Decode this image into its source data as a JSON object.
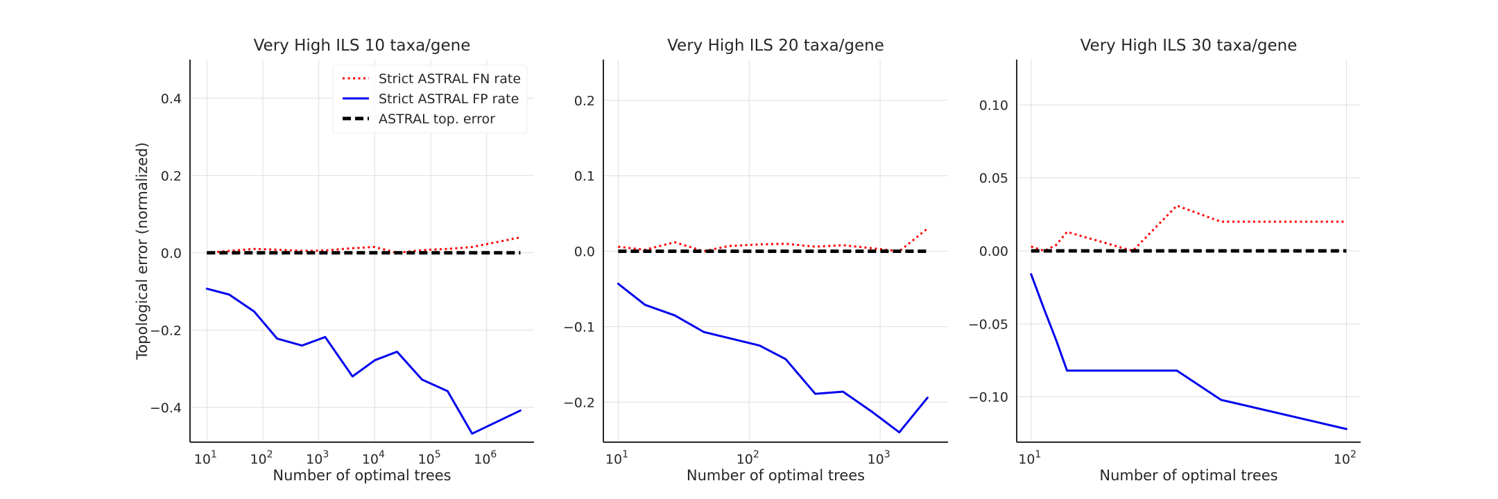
{
  "chart_data": [
    {
      "type": "line",
      "title": "Very High ILS 10 taxa/gene",
      "xlabel": "Number of optimal trees",
      "ylabel": "Topological error (normalized)",
      "xscale": "log",
      "xlim": [
        5,
        7000000
      ],
      "ylim": [
        -0.49,
        0.5
      ],
      "xticks": [
        {
          "base": "10",
          "exp": "1"
        },
        {
          "base": "10",
          "exp": "2"
        },
        {
          "base": "10",
          "exp": "3"
        },
        {
          "base": "10",
          "exp": "4"
        },
        {
          "base": "10",
          "exp": "5"
        },
        {
          "base": "10",
          "exp": "6"
        }
      ],
      "yticks": [
        "−0.4",
        "−0.2",
        "0.0",
        "0.2",
        "0.4"
      ],
      "ytick_values": [
        -0.4,
        -0.2,
        0.0,
        0.2,
        0.4
      ],
      "grid": true,
      "legend": {
        "position": "top-right",
        "entries": [
          "Strict ASTRAL FN rate",
          "Strict ASTRAL FP rate",
          "ASTRAL top. error"
        ]
      },
      "series": [
        {
          "name": "Strict ASTRAL FN rate",
          "color": "#ff0000",
          "style": "dotted",
          "x": [
            10,
            25,
            70,
            180,
            500,
            1300,
            4000,
            10000,
            25000,
            70000,
            200000,
            550000,
            4000000
          ],
          "y": [
            0.0,
            0.005,
            0.01,
            0.008,
            0.005,
            0.006,
            0.012,
            0.015,
            0.0,
            0.007,
            0.01,
            0.015,
            0.04
          ]
        },
        {
          "name": "Strict ASTRAL FP rate",
          "color": "#0000ee",
          "style": "solid",
          "x": [
            10,
            25,
            70,
            180,
            500,
            1300,
            4000,
            10000,
            25000,
            70000,
            200000,
            550000,
            4000000
          ],
          "y": [
            -0.093,
            -0.108,
            -0.152,
            -0.222,
            -0.24,
            -0.218,
            -0.32,
            -0.278,
            -0.256,
            -0.328,
            -0.358,
            -0.468,
            -0.408
          ]
        },
        {
          "name": "ASTRAL top. error",
          "color": "#000000",
          "style": "dashed",
          "x": [
            10,
            4000000
          ],
          "y": [
            0.0,
            0.0
          ]
        }
      ]
    },
    {
      "type": "line",
      "title": "Very High ILS 20 taxa/gene",
      "xlabel": "Number of optimal trees",
      "ylabel": "",
      "xscale": "log",
      "xlim": [
        7.7,
        3300
      ],
      "ylim": [
        -0.253,
        0.254
      ],
      "xticks": [
        {
          "base": "10",
          "exp": "1"
        },
        {
          "base": "10",
          "exp": "2"
        },
        {
          "base": "10",
          "exp": "3"
        }
      ],
      "yticks": [
        "−0.2",
        "−0.1",
        "0.0",
        "0.1",
        "0.2"
      ],
      "ytick_values": [
        -0.2,
        -0.1,
        0.0,
        0.1,
        0.2
      ],
      "grid": true,
      "series": [
        {
          "name": "Strict ASTRAL FN rate",
          "color": "#ff0000",
          "style": "dotted",
          "x": [
            10,
            16,
            27,
            45,
            70,
            120,
            190,
            320,
            520,
            870,
            1400,
            2300
          ],
          "y": [
            0.006,
            0.002,
            0.012,
            0.0,
            0.007,
            0.009,
            0.01,
            0.006,
            0.008,
            0.004,
            0.0,
            0.03
          ]
        },
        {
          "name": "Strict ASTRAL FP rate",
          "color": "#0000ee",
          "style": "solid",
          "x": [
            10,
            16,
            27,
            45,
            70,
            120,
            190,
            320,
            520,
            870,
            1400,
            2300
          ],
          "y": [
            -0.043,
            -0.071,
            -0.085,
            -0.107,
            -0.115,
            -0.125,
            -0.143,
            -0.189,
            -0.186,
            -0.213,
            -0.24,
            -0.194
          ]
        },
        {
          "name": "ASTRAL top. error",
          "color": "#000000",
          "style": "dashed",
          "x": [
            10,
            2300
          ],
          "y": [
            0.0,
            0.0
          ]
        }
      ]
    },
    {
      "type": "line",
      "title": "Very High ILS 30 taxa/gene",
      "xlabel": "Number of optimal trees",
      "ylabel": "",
      "xscale": "log",
      "xlim": [
        9.0,
        111
      ],
      "ylim": [
        -0.131,
        0.131
      ],
      "xticks": [
        {
          "base": "10",
          "exp": "1"
        },
        {
          "base": "10",
          "exp": "2"
        }
      ],
      "yticks": [
        "−0.10",
        "−0.05",
        "0.00",
        "0.05",
        "0.10"
      ],
      "ytick_values": [
        -0.1,
        -0.05,
        0.0,
        0.05,
        0.1
      ],
      "grid": true,
      "series": [
        {
          "name": "Strict ASTRAL FN rate",
          "color": "#ff0000",
          "style": "dotted",
          "x": [
            10,
            11,
            12,
            13,
            21,
            29,
            40,
            100
          ],
          "y": [
            0.003,
            0.0,
            0.004,
            0.013,
            0.0,
            0.031,
            0.02,
            0.02
          ]
        },
        {
          "name": "Strict ASTRAL FP rate",
          "color": "#0000ee",
          "style": "solid",
          "x": [
            10,
            11,
            12,
            13,
            21,
            29,
            40,
            100
          ],
          "y": [
            -0.016,
            -0.04,
            -0.061,
            -0.082,
            -0.082,
            -0.082,
            -0.102,
            -0.122
          ]
        },
        {
          "name": "ASTRAL top. error",
          "color": "#000000",
          "style": "dashed",
          "x": [
            10,
            100
          ],
          "y": [
            0.0,
            0.0
          ]
        }
      ]
    }
  ]
}
